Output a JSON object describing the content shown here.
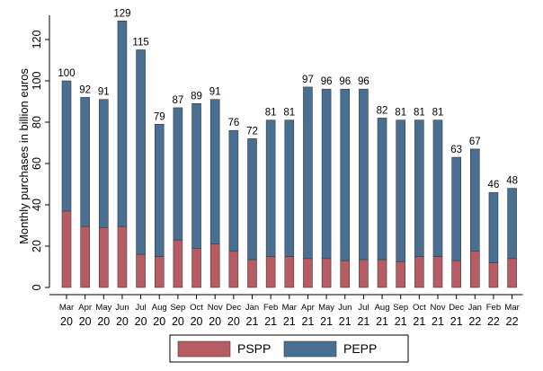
{
  "chart_data": {
    "type": "bar",
    "stacked": true,
    "title": "",
    "xlabel": "",
    "ylabel": "Monthly purchases in billion euros",
    "ylim": [
      0,
      130
    ],
    "yticks": [
      0,
      20,
      40,
      60,
      80,
      100,
      120
    ],
    "categories": [
      [
        "Mar",
        "20"
      ],
      [
        "Apr",
        "20"
      ],
      [
        "May",
        "20"
      ],
      [
        "Jun",
        "20"
      ],
      [
        "Jul",
        "20"
      ],
      [
        "Aug",
        "20"
      ],
      [
        "Sep",
        "20"
      ],
      [
        "Oct",
        "20"
      ],
      [
        "Nov",
        "20"
      ],
      [
        "Dec",
        "20"
      ],
      [
        "Jan",
        "21"
      ],
      [
        "Feb",
        "21"
      ],
      [
        "Mar",
        "21"
      ],
      [
        "Apr",
        "21"
      ],
      [
        "May",
        "21"
      ],
      [
        "Jun",
        "21"
      ],
      [
        "Jul",
        "21"
      ],
      [
        "Aug",
        "21"
      ],
      [
        "Sep",
        "21"
      ],
      [
        "Oct",
        "21"
      ],
      [
        "Nov",
        "21"
      ],
      [
        "Dec",
        "21"
      ],
      [
        "Jan",
        "22"
      ],
      [
        "Feb",
        "22"
      ],
      [
        "Mar",
        "22"
      ]
    ],
    "series": [
      {
        "name": "PSPP",
        "color": "#b85c63",
        "values": [
          37,
          29.5,
          29,
          29.5,
          16,
          15,
          23,
          19,
          21,
          17.5,
          13.5,
          15,
          15,
          14,
          14,
          13,
          13.5,
          13.5,
          12.5,
          15,
          15,
          13,
          17.5,
          12,
          14
        ]
      },
      {
        "name": "PEPP",
        "color": "#496f92",
        "values": [
          63,
          62.5,
          62,
          99.5,
          99,
          64,
          64,
          70,
          70,
          58.5,
          58.5,
          66,
          66,
          83,
          82,
          83,
          82.5,
          68.5,
          68.5,
          66,
          66,
          50,
          49.5,
          34,
          34
        ]
      }
    ],
    "totals": [
      100,
      92,
      91,
      129,
      115,
      79,
      87,
      89,
      91,
      76,
      72,
      81,
      81,
      97,
      96,
      96,
      96,
      82,
      81,
      81,
      81,
      63,
      67,
      46,
      48
    ],
    "legend": {
      "position": "bottom",
      "entries": [
        "PSPP",
        "PEPP"
      ]
    },
    "grid": false
  },
  "colors": {
    "bar_outline": "#3a3a3a",
    "axis": "#000000",
    "legend_border": "#000000"
  }
}
